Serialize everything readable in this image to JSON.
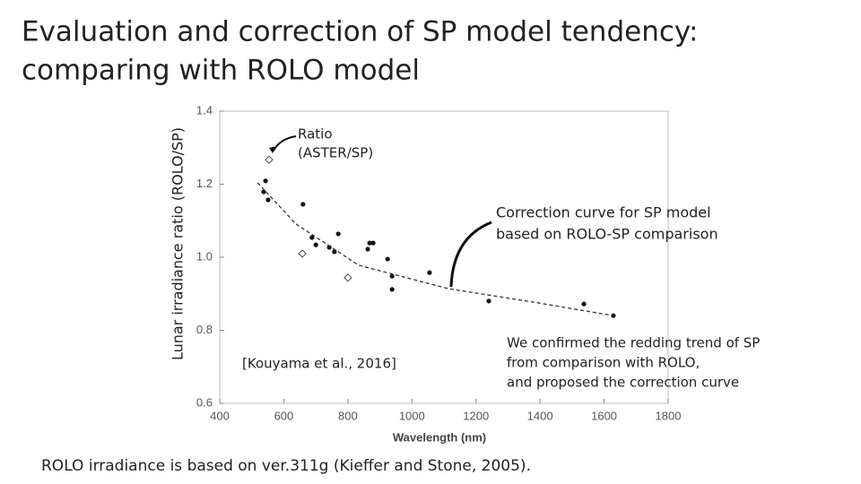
{
  "chart_data": {
    "type": "scatter",
    "title": [
      "Evaluation and correction of SP model tendency:",
      "comparing with ROLO model"
    ],
    "x_label": "Wavelength (nm)",
    "y_label": "Lunar irradiance ratio (ROLO/SP)",
    "xlim": [
      400,
      1800
    ],
    "xticks": [
      400,
      600,
      800,
      1000,
      1200,
      1400,
      1600,
      1800
    ],
    "ylim": [
      0.6,
      1.4
    ],
    "yticks": [
      0.6,
      0.8,
      {
        "value": 1,
        "label": "1.0"
      },
      1.2,
      1.4
    ],
    "series": [
      {
        "marker": "dot",
        "color": "#111111",
        "x": [
          543,
          537,
          551,
          660,
          688,
          700,
          742,
          770,
          758,
          862,
          868,
          879,
          924,
          938,
          938,
          1055,
          1240,
          1537,
          1629
        ],
        "values": [
          1.209,
          1.179,
          1.157,
          1.145,
          1.054,
          1.034,
          1.027,
          1.064,
          1.015,
          1.022,
          1.039,
          1.039,
          0.995,
          0.948,
          0.912,
          0.958,
          0.88,
          0.872,
          0.84
        ]
      },
      {
        "marker": "diamond",
        "color": "#444444",
        "x": [
          554,
          658,
          800
        ],
        "values": [
          1.267,
          1.01,
          0.944
        ]
      },
      {
        "marker": "dashed-line",
        "color": "#333333",
        "x": [
          518,
          638,
          834,
          1114,
          1394,
          1629
        ],
        "values": [
          1.204,
          1.091,
          0.978,
          0.914,
          0.875,
          0.84
        ]
      }
    ],
    "annotations": {
      "ratio": [
        "Ratio",
        "(ASTER/SP)"
      ],
      "correction": [
        "Correction curve for SP model",
        "based on ROLO-SP comparison"
      ],
      "citation": "[Kouyama et al., 2016]",
      "conclusion": [
        "We confirmed the redding trend of SP",
        "from comparison with ROLO,",
        "and proposed the correction curve"
      ]
    },
    "footnote": "ROLO irradiance is based on ver.311g (Kieffer and Stone, 2005)."
  }
}
